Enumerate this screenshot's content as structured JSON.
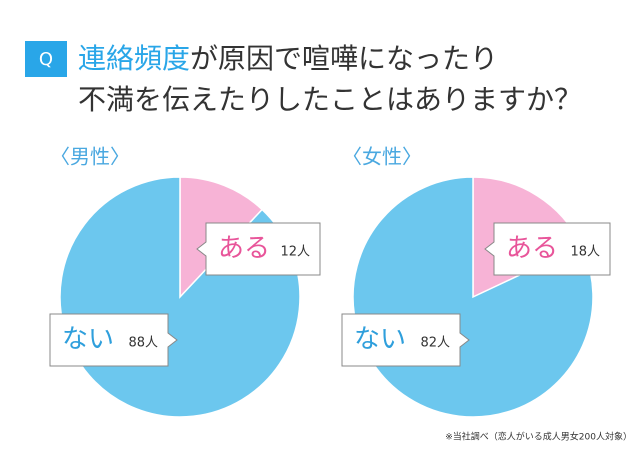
{
  "header": {
    "badge": "Q",
    "title_highlight": "連絡頻度",
    "title_rest": "が原因で喧嘩になったり",
    "title_line2": "不満を伝えたりしたことはありますか？"
  },
  "footnote": "※当社調べ（恋人がいる成人男女200人対象）",
  "chart_data": [
    {
      "type": "pie",
      "title": "〈男性〉",
      "categories": [
        "ある",
        "ない"
      ],
      "values": [
        12,
        88
      ],
      "value_labels": [
        "12人",
        "88人"
      ],
      "colors": [
        "#f7b3d6",
        "#6cc7ee"
      ]
    },
    {
      "type": "pie",
      "title": "〈女性〉",
      "categories": [
        "ある",
        "ない"
      ],
      "values": [
        18,
        82
      ],
      "value_labels": [
        "18人",
        "82人"
      ],
      "colors": [
        "#f7b3d6",
        "#6cc7ee"
      ]
    }
  ]
}
